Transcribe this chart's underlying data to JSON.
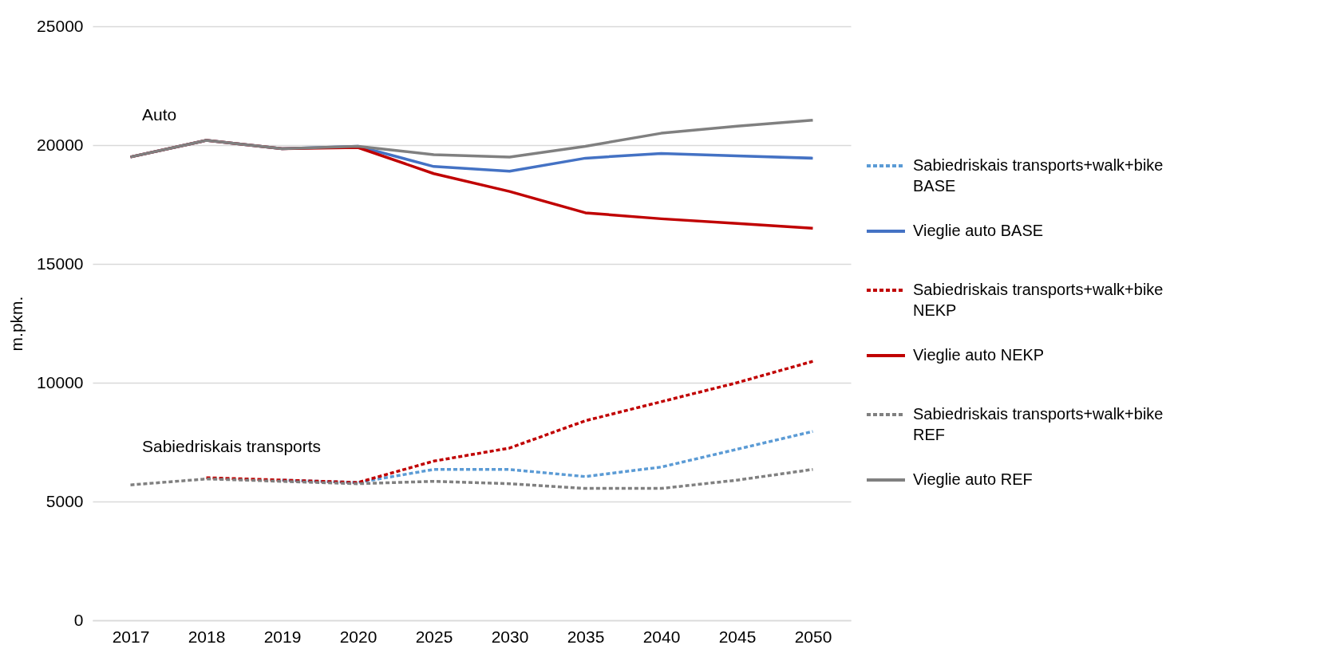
{
  "chart_data": {
    "type": "line",
    "ylabel": "m.pkm.",
    "categories": [
      "2017",
      "2018",
      "2019",
      "2020",
      "2025",
      "2030",
      "2035",
      "2040",
      "2045",
      "2050"
    ],
    "ylim": [
      0,
      25000
    ],
    "yticks": [
      0,
      5000,
      10000,
      15000,
      20000,
      25000
    ],
    "grid": "y",
    "legend": "right",
    "marker": "none",
    "series": [
      {
        "name": "Sabiedriskais transports+walk+bike BASE",
        "color": "#5b9bd5",
        "line_style": "dashed",
        "values": [
          null,
          null,
          5900,
          5800,
          6350,
          6350,
          6050,
          6450,
          7200,
          7950
        ]
      },
      {
        "name": "Vieglie auto BASE",
        "color": "#4472c4",
        "line_style": "solid",
        "values": [
          19500,
          20200,
          19850,
          19950,
          19100,
          18900,
          19450,
          19650,
          19550,
          19450
        ]
      },
      {
        "name": "Sabiedriskais transports+walk+bike NEKP",
        "color": "#c00000",
        "line_style": "dashed",
        "values": [
          null,
          6000,
          5900,
          5800,
          6700,
          7250,
          8400,
          9200,
          10000,
          10900
        ]
      },
      {
        "name": "Vieglie auto NEKP",
        "color": "#c00000",
        "line_style": "solid",
        "values": [
          19500,
          20200,
          19850,
          19900,
          18800,
          18050,
          17150,
          16900,
          16700,
          16500
        ]
      },
      {
        "name": "Sabiedriskais transports+walk+bike REF",
        "color": "#808080",
        "line_style": "dashed",
        "values": [
          5700,
          5950,
          5850,
          5750,
          5850,
          5750,
          5550,
          5550,
          5900,
          6350
        ]
      },
      {
        "name": "Vieglie auto REF",
        "color": "#808080",
        "line_style": "solid",
        "values": [
          19500,
          20200,
          19850,
          19950,
          19600,
          19500,
          19950,
          20500,
          20800,
          21050
        ]
      }
    ],
    "annotations": [
      "Auto",
      "Sabiedriskais transports"
    ]
  }
}
